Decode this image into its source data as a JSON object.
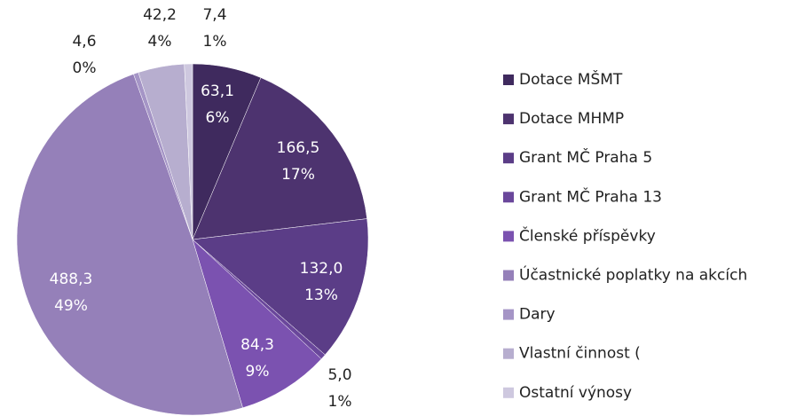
{
  "chart_data": {
    "type": "pie",
    "categories": [
      "Dotace MŠMT",
      "Dotace MHMP",
      "Grant MČ Praha 5",
      "Grant MČ Praha 13",
      "Členské příspěvky",
      "Účastnické poplatky na akcích",
      "Dary",
      "Vlastní činnost (",
      "Ostatní výnosy"
    ],
    "values": [
      63.1,
      166.5,
      132.0,
      5.0,
      84.3,
      488.3,
      4.6,
      42.2,
      7.4
    ],
    "value_labels": [
      "63,1",
      "166,5",
      "132,0",
      "5,0",
      "84,3",
      "488,3",
      "4,6",
      "42,2",
      "7,4"
    ],
    "percent_labels": [
      "6%",
      "17%",
      "13%",
      "1%",
      "9%",
      "49%",
      "0%",
      "4%",
      "1%"
    ],
    "colors": [
      "#3f2a5e",
      "#4d336f",
      "#5b3d87",
      "#6a479b",
      "#7b52b0",
      "#9580b9",
      "#a595c6",
      "#b7aecf",
      "#cec8df"
    ],
    "legend": "right"
  }
}
